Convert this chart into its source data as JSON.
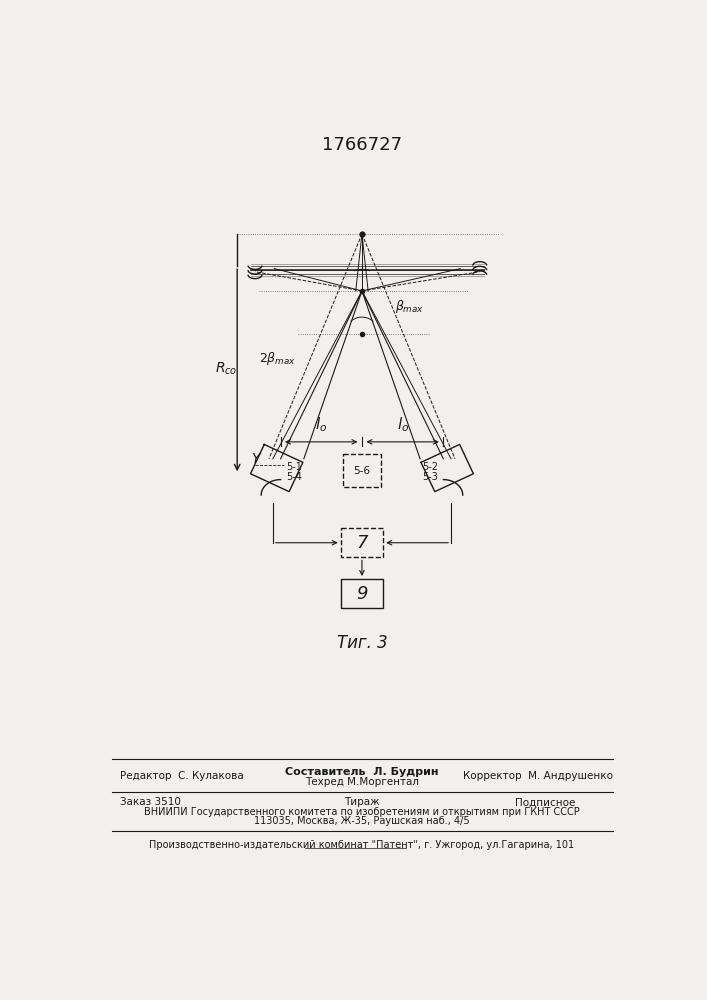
{
  "title": "1766727",
  "fig_label": "Τиг. 3",
  "bg_color": "#f2f0ec",
  "line_color": "#1a1a1a",
  "vniipи_text": "ВНИИПИ Государственного комитета по изобретениям и открытиям при ГКНТ СССР",
  "addr_text": "113035, Москва, Ж-35, Раушская наб., 4/5",
  "plant_text": "Производственно-издательский комбинат \"Патент\", г. Ужгород, ул.Гагарина, 101"
}
